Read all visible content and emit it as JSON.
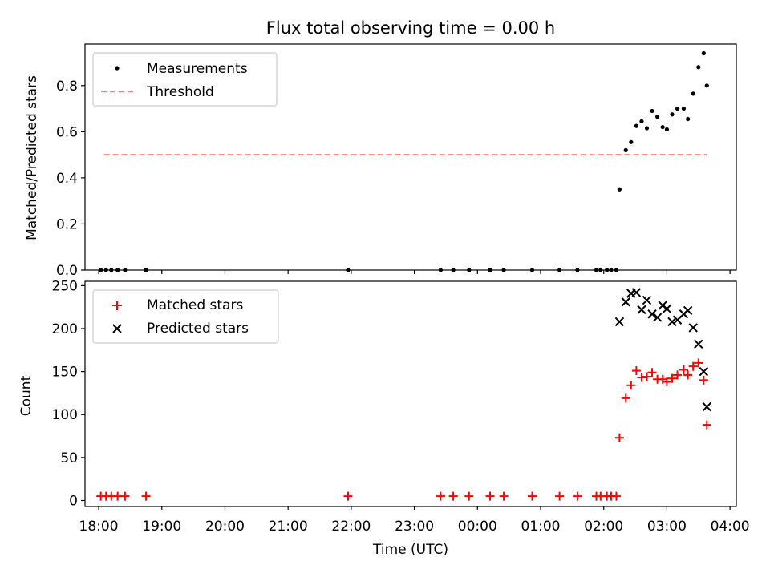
{
  "figure": {
    "title": "Flux total observing time = 0.00 h",
    "xlabel": "Time (UTC)",
    "x_ticks": [
      "18:00",
      "19:00",
      "20:00",
      "21:00",
      "22:00",
      "23:00",
      "00:00",
      "01:00",
      "02:00",
      "03:00",
      "04:00"
    ]
  },
  "chart_data": [
    {
      "type": "scatter",
      "panel": "top",
      "ylabel": "Matched/Predicted stars",
      "ylim": [
        0,
        0.98
      ],
      "y_ticks": [
        "0.0",
        "0.2",
        "0.4",
        "0.6",
        "0.8"
      ],
      "xlim": [
        "17:47",
        "04:06"
      ],
      "grid": false,
      "legend_position": "upper left",
      "series": [
        {
          "name": "Measurements",
          "kind": "points",
          "color": "#000000",
          "points": [
            [
              "18:02",
              0
            ],
            [
              "18:07",
              0
            ],
            [
              "18:12",
              0
            ],
            [
              "18:18",
              0
            ],
            [
              "18:25",
              0
            ],
            [
              "18:45",
              0
            ],
            [
              "21:57",
              0
            ],
            [
              "23:25",
              0
            ],
            [
              "23:37",
              0
            ],
            [
              "23:52",
              0
            ],
            [
              "24:12",
              0
            ],
            [
              "24:25",
              0
            ],
            [
              "24:52",
              0
            ],
            [
              "25:18",
              0
            ],
            [
              "25:35",
              0
            ],
            [
              "25:53",
              0
            ],
            [
              "25:57",
              0
            ],
            [
              "26:03",
              0
            ],
            [
              "26:07",
              0
            ],
            [
              "26:12",
              0
            ],
            [
              "26:15",
              0.35
            ],
            [
              "26:21",
              0.52
            ],
            [
              "26:26",
              0.555
            ],
            [
              "26:31",
              0.625
            ],
            [
              "26:36",
              0.645
            ],
            [
              "26:41",
              0.615
            ],
            [
              "26:46",
              0.69
            ],
            [
              "26:51",
              0.665
            ],
            [
              "26:56",
              0.62
            ],
            [
              "27:00",
              0.61
            ],
            [
              "27:05",
              0.675
            ],
            [
              "27:10",
              0.7
            ],
            [
              "27:16",
              0.7
            ],
            [
              "27:20",
              0.655
            ],
            [
              "27:25",
              0.765
            ],
            [
              "27:30",
              0.88
            ],
            [
              "27:35",
              0.94
            ],
            [
              "27:38",
              0.8
            ]
          ]
        },
        {
          "name": "Threshold",
          "kind": "dashed-line",
          "color": "#ff8080",
          "points": [
            [
              "18:05",
              0.5
            ],
            [
              "27:38",
              0.5
            ]
          ]
        }
      ]
    },
    {
      "type": "scatter",
      "panel": "bottom",
      "ylabel": "Count",
      "ylim": [
        -7,
        255
      ],
      "y_ticks": [
        "0",
        "50",
        "100",
        "150",
        "200",
        "250"
      ],
      "xlim": [
        "17:47",
        "04:06"
      ],
      "grid": false,
      "legend_position": "upper left",
      "series": [
        {
          "name": "Matched stars",
          "marker": "+",
          "color": "#ff0000",
          "points": [
            [
              "18:02",
              5
            ],
            [
              "18:07",
              5
            ],
            [
              "18:12",
              5
            ],
            [
              "18:18",
              5
            ],
            [
              "18:25",
              5
            ],
            [
              "18:45",
              5
            ],
            [
              "21:57",
              5
            ],
            [
              "23:25",
              5
            ],
            [
              "23:37",
              5
            ],
            [
              "23:52",
              5
            ],
            [
              "24:12",
              5
            ],
            [
              "24:25",
              5
            ],
            [
              "24:52",
              5
            ],
            [
              "25:18",
              5
            ],
            [
              "25:35",
              5
            ],
            [
              "25:53",
              5
            ],
            [
              "25:57",
              5
            ],
            [
              "26:03",
              5
            ],
            [
              "26:07",
              5
            ],
            [
              "26:12",
              5
            ],
            [
              "26:15",
              73
            ],
            [
              "26:21",
              119
            ],
            [
              "26:26",
              134
            ],
            [
              "26:31",
              151
            ],
            [
              "26:36",
              143
            ],
            [
              "26:41",
              144
            ],
            [
              "26:46",
              149
            ],
            [
              "26:51",
              141
            ],
            [
              "26:56",
              141
            ],
            [
              "27:00",
              138
            ],
            [
              "27:05",
              142
            ],
            [
              "27:10",
              146
            ],
            [
              "27:16",
              152
            ],
            [
              "27:20",
              146
            ],
            [
              "27:25",
              156
            ],
            [
              "27:30",
              160
            ],
            [
              "27:35",
              140
            ],
            [
              "27:38",
              88
            ]
          ]
        },
        {
          "name": "Predicted stars",
          "marker": "x",
          "color": "#000000",
          "points": [
            [
              "26:15",
              208
            ],
            [
              "26:21",
              231
            ],
            [
              "26:26",
              241
            ],
            [
              "26:31",
              242
            ],
            [
              "26:36",
              222
            ],
            [
              "26:41",
              233
            ],
            [
              "26:46",
              217
            ],
            [
              "26:51",
              213
            ],
            [
              "26:56",
              227
            ],
            [
              "27:00",
              223
            ],
            [
              "27:05",
              208
            ],
            [
              "27:10",
              210
            ],
            [
              "27:16",
              217
            ],
            [
              "27:20",
              221
            ],
            [
              "27:25",
              201
            ],
            [
              "27:30",
              182
            ],
            [
              "27:35",
              150
            ],
            [
              "27:38",
              109
            ]
          ]
        }
      ]
    }
  ]
}
